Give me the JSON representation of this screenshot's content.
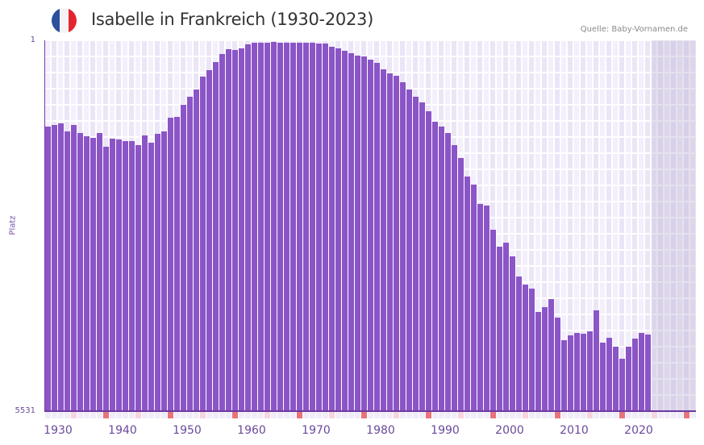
{
  "header": {
    "title": "Isabelle in Frankreich (1930-2023)",
    "source": "Quelle: Baby-Vornamen.de",
    "flag_colors": [
      "#2c4f9e",
      "#f4f4f8",
      "#e3262e"
    ]
  },
  "axes": {
    "ylabel": "Platz",
    "y_top_label": "1",
    "y_bottom_label": "5531",
    "x_tick_labels": [
      "1930",
      "1940",
      "1950",
      "1960",
      "1970",
      "1980",
      "1990",
      "2000",
      "2010",
      "2020"
    ]
  },
  "colors": {
    "bar": "#8b55c7",
    "grid_cell_a": "#f3effb",
    "grid_cell_b": "#ebe5f6",
    "future_shade": "#e2dcec",
    "marker_decade": "#e8737a",
    "marker_half": "#f5d5de",
    "marker_other": "#f0ecf8"
  },
  "chart_data": {
    "type": "bar",
    "title": "Isabelle in Frankreich (1930-2023)",
    "xlabel": "",
    "ylabel": "Platz",
    "y_inverted": true,
    "ylim": [
      1,
      5531
    ],
    "xlim": [
      1930,
      2030
    ],
    "grid": true,
    "legend": null,
    "annotations": [
      "Quelle: Baby-Vornamen.de"
    ],
    "x": [
      1930,
      1931,
      1932,
      1933,
      1934,
      1935,
      1936,
      1937,
      1938,
      1939,
      1940,
      1941,
      1942,
      1943,
      1944,
      1945,
      1946,
      1947,
      1948,
      1949,
      1950,
      1951,
      1952,
      1953,
      1954,
      1955,
      1956,
      1957,
      1958,
      1959,
      1960,
      1961,
      1962,
      1963,
      1964,
      1965,
      1966,
      1967,
      1968,
      1969,
      1970,
      1971,
      1972,
      1973,
      1974,
      1975,
      1976,
      1977,
      1978,
      1979,
      1980,
      1981,
      1982,
      1983,
      1984,
      1985,
      1986,
      1987,
      1988,
      1989,
      1990,
      1991,
      1992,
      1993,
      1994,
      1995,
      1996,
      1997,
      1998,
      1999,
      2000,
      2001,
      2002,
      2003,
      2004,
      2005,
      2006,
      2007,
      2008,
      2009,
      2010,
      2011,
      2012,
      2013,
      2014,
      2015,
      2016,
      2017,
      2018,
      2019,
      2020,
      2021,
      2022,
      2023
    ],
    "values": [
      1287,
      1263,
      1239,
      1359,
      1263,
      1383,
      1431,
      1455,
      1383,
      1587,
      1467,
      1479,
      1503,
      1503,
      1563,
      1419,
      1527,
      1395,
      1359,
      1155,
      1143,
      964,
      844,
      736,
      544,
      448,
      327,
      207,
      135,
      147,
      123,
      61,
      37,
      37,
      37,
      25,
      37,
      37,
      37,
      37,
      37,
      37,
      49,
      49,
      97,
      123,
      158,
      194,
      231,
      243,
      291,
      339,
      435,
      495,
      531,
      627,
      736,
      844,
      928,
      1058,
      1215,
      1287,
      1383,
      1563,
      1756,
      2033,
      2153,
      2441,
      2466,
      2826,
      3078,
      3018,
      3222,
      3523,
      3643,
      3703,
      4051,
      3979,
      3859,
      4135,
      4471,
      4399,
      4363,
      4375,
      4339,
      4027,
      4507,
      4435,
      4567,
      4748,
      4567,
      4447,
      4363,
      4387
    ]
  }
}
